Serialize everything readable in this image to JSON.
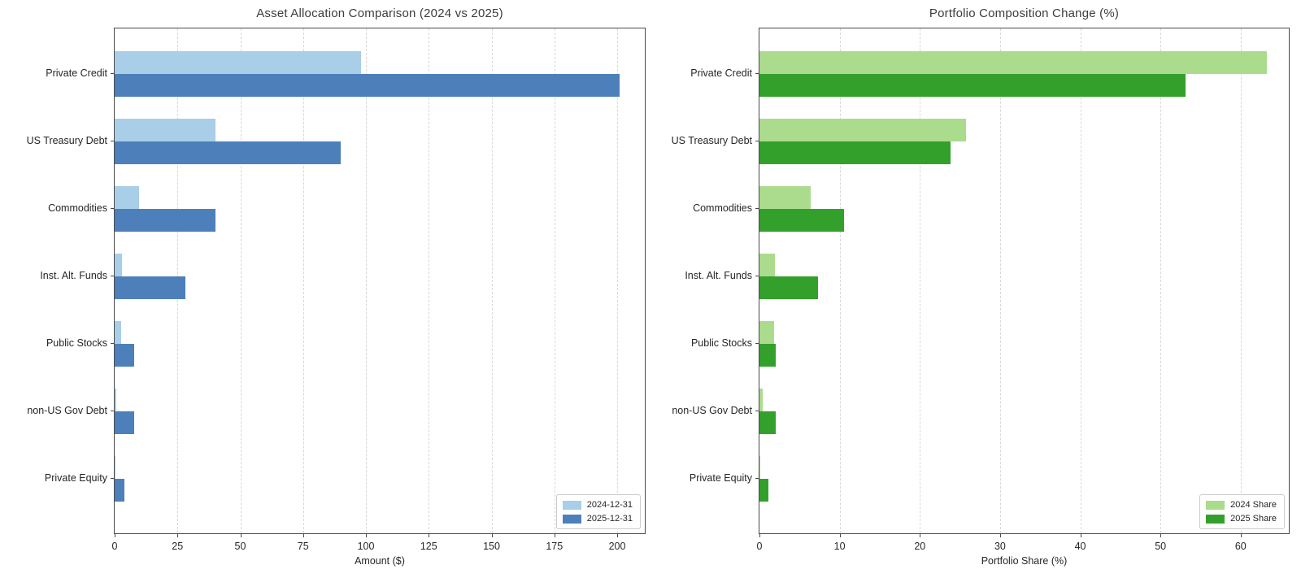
{
  "chart_data": [
    {
      "type": "bar",
      "orientation": "horizontal",
      "title": "Asset Allocation Comparison (2024 vs 2025)",
      "xlabel": "Amount ($)",
      "ylabel": "",
      "categories": [
        "Private Credit",
        "US Treasury Debt",
        "Commodities",
        "Inst. Alt. Funds",
        "Public Stocks",
        "non-US Gov Debt",
        "Private Equity"
      ],
      "series": [
        {
          "name": "2024-12-31",
          "color": "#a8cee8",
          "values": [
            98,
            40,
            9.7,
            2.8,
            2.7,
            0.7,
            0.1
          ]
        },
        {
          "name": "2025-12-31",
          "color": "#4d80bb",
          "values": [
            201,
            90,
            40,
            28,
            7.7,
            7.7,
            3.9
          ]
        }
      ],
      "xlim": [
        0,
        211
      ],
      "xticks": [
        0,
        25,
        50,
        75,
        100,
        125,
        150,
        175,
        200
      ],
      "grid": "vertical-dashed",
      "legend_position": "lower right"
    },
    {
      "type": "bar",
      "orientation": "horizontal",
      "title": "Portfolio Composition Change (%)",
      "xlabel": "Portfolio Share (%)",
      "ylabel": "",
      "categories": [
        "Private Credit",
        "US Treasury Debt",
        "Commodities",
        "Inst. Alt. Funds",
        "Public Stocks",
        "non-US Gov Debt",
        "Private Equity"
      ],
      "series": [
        {
          "name": "2024 Share",
          "color": "#abdb8d",
          "values": [
            63.3,
            25.8,
            6.4,
            1.9,
            1.8,
            0.4,
            0.05
          ]
        },
        {
          "name": "2025 Share",
          "color": "#33a02c",
          "values": [
            53.1,
            23.8,
            10.5,
            7.3,
            2.0,
            2.0,
            1.1
          ]
        }
      ],
      "xlim": [
        0,
        66
      ],
      "xticks": [
        0,
        10,
        20,
        30,
        40,
        50,
        60
      ],
      "grid": "vertical-dashed",
      "legend_position": "lower right"
    }
  ]
}
